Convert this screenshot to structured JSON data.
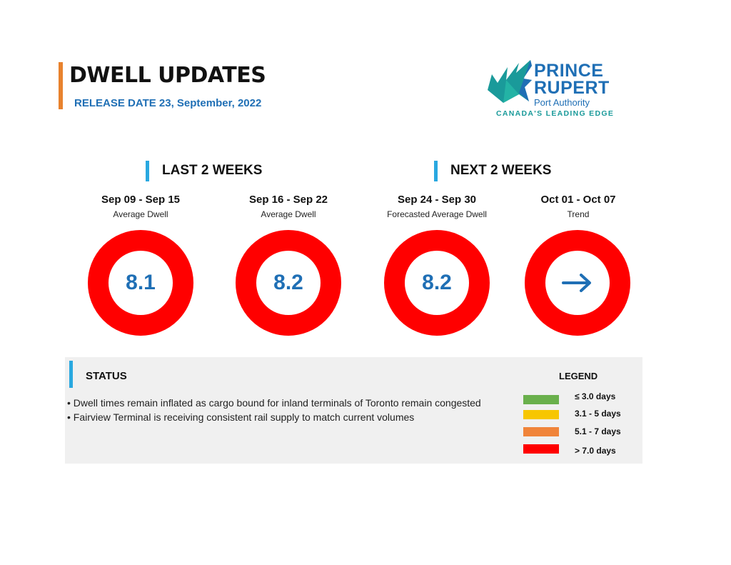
{
  "header": {
    "title": "DWELL UPDATES",
    "release": "RELEASE DATE 23, September, 2022"
  },
  "logo": {
    "line1": "PRINCE",
    "line2": "RUPERT",
    "line3": "Port Authority",
    "tagline": "CANADA'S LEADING EDGE"
  },
  "sections": {
    "last": "LAST 2 WEEKS",
    "next": "NEXT 2 WEEKS"
  },
  "periods": [
    {
      "label": "Sep 09 - Sep 15",
      "sub": "Average Dwell",
      "value": "8.1",
      "ring_color": "#ff0000"
    },
    {
      "label": "Sep 16 - Sep 22",
      "sub": "Average Dwell",
      "value": "8.2",
      "ring_color": "#ff0000"
    },
    {
      "label": "Sep 24 - Sep 30",
      "sub": "Forecasted Average Dwell",
      "value": "8.2",
      "ring_color": "#ff0000"
    },
    {
      "label": "Oct 01 - Oct 07",
      "sub": "Trend",
      "icon": "arrow-right-icon",
      "ring_color": "#ff0000"
    }
  ],
  "status": {
    "title": "STATUS",
    "lines": [
      "•  Dwell times remain inflated as cargo bound for inland terminals of Toronto remain congested",
      "• Fairview Terminal is receiving consistent rail supply to match current volumes"
    ]
  },
  "legend": {
    "title": "LEGEND",
    "items": [
      {
        "label": "≤ 3.0 days",
        "color": "#6ab04c"
      },
      {
        "label": "3.1 - 5 days",
        "color": "#f7c600"
      },
      {
        "label": "5.1 - 7 days",
        "color": "#f0843a"
      },
      {
        "label": "> 7.0 days",
        "color": "#ff0000"
      }
    ]
  },
  "colors": {
    "accent_blue": "#1f6fb5",
    "section_bar": "#29a8e0",
    "header_bar": "#e8822e"
  }
}
